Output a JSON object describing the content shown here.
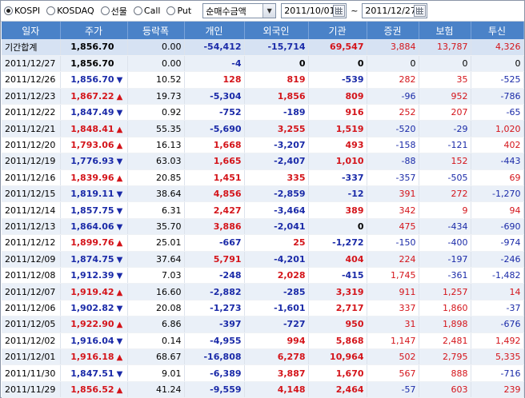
{
  "toolbar": {
    "market_options": [
      {
        "label": "KOSPI",
        "selected": true
      },
      {
        "label": "KOSDAQ",
        "selected": false
      },
      {
        "label": "선물",
        "selected": false
      },
      {
        "label": "Call",
        "selected": false
      },
      {
        "label": "Put",
        "selected": false
      }
    ],
    "metric_select": "순매수금액",
    "date_from": "2011/10/01",
    "date_separator": "~",
    "date_to": "2011/12/27"
  },
  "columns": [
    "일자",
    "주가",
    "등락폭",
    "개인",
    "외국인",
    "기관",
    "증권",
    "보험",
    "투신"
  ],
  "colors": {
    "header_bg": "#4a82c8",
    "up": "#d4141a",
    "down": "#1a2aa8"
  },
  "rows": [
    {
      "date": "기간합계",
      "price": "1,856.70",
      "dir": "",
      "change": "0.00",
      "indiv": "-54,412",
      "foreign": "-15,714",
      "inst": "69,547",
      "sec": "3,884",
      "ins": "13,787",
      "trust": "4,326",
      "total": true
    },
    {
      "date": "2011/12/27",
      "price": "1,856.70",
      "dir": "",
      "change": "0.00",
      "indiv": "-4",
      "foreign": "0",
      "inst": "0",
      "sec": "0",
      "ins": "0",
      "trust": "0"
    },
    {
      "date": "2011/12/26",
      "price": "1,856.70",
      "dir": "down",
      "change": "10.52",
      "indiv": "128",
      "foreign": "819",
      "inst": "-539",
      "sec": "282",
      "ins": "35",
      "trust": "-525"
    },
    {
      "date": "2011/12/23",
      "price": "1,867.22",
      "dir": "up",
      "change": "19.73",
      "indiv": "-5,304",
      "foreign": "1,856",
      "inst": "809",
      "sec": "-96",
      "ins": "952",
      "trust": "-786"
    },
    {
      "date": "2011/12/22",
      "price": "1,847.49",
      "dir": "down",
      "change": "0.92",
      "indiv": "-752",
      "foreign": "-189",
      "inst": "916",
      "sec": "252",
      "ins": "207",
      "trust": "-65"
    },
    {
      "date": "2011/12/21",
      "price": "1,848.41",
      "dir": "up",
      "change": "55.35",
      "indiv": "-5,690",
      "foreign": "3,255",
      "inst": "1,519",
      "sec": "-520",
      "ins": "-29",
      "trust": "1,020"
    },
    {
      "date": "2011/12/20",
      "price": "1,793.06",
      "dir": "up",
      "change": "16.13",
      "indiv": "1,668",
      "foreign": "-3,207",
      "inst": "493",
      "sec": "-158",
      "ins": "-121",
      "trust": "402"
    },
    {
      "date": "2011/12/19",
      "price": "1,776.93",
      "dir": "down",
      "change": "63.03",
      "indiv": "1,665",
      "foreign": "-2,407",
      "inst": "1,010",
      "sec": "-88",
      "ins": "152",
      "trust": "-443"
    },
    {
      "date": "2011/12/16",
      "price": "1,839.96",
      "dir": "up",
      "change": "20.85",
      "indiv": "1,451",
      "foreign": "335",
      "inst": "-337",
      "sec": "-357",
      "ins": "-505",
      "trust": "69"
    },
    {
      "date": "2011/12/15",
      "price": "1,819.11",
      "dir": "down",
      "change": "38.64",
      "indiv": "4,856",
      "foreign": "-2,859",
      "inst": "-12",
      "sec": "391",
      "ins": "272",
      "trust": "-1,270"
    },
    {
      "date": "2011/12/14",
      "price": "1,857.75",
      "dir": "down",
      "change": "6.31",
      "indiv": "2,427",
      "foreign": "-3,464",
      "inst": "389",
      "sec": "342",
      "ins": "9",
      "trust": "94"
    },
    {
      "date": "2011/12/13",
      "price": "1,864.06",
      "dir": "down",
      "change": "35.70",
      "indiv": "3,886",
      "foreign": "-2,041",
      "inst": "0",
      "sec": "475",
      "ins": "-434",
      "trust": "-690"
    },
    {
      "date": "2011/12/12",
      "price": "1,899.76",
      "dir": "up",
      "change": "25.01",
      "indiv": "-667",
      "foreign": "25",
      "inst": "-1,272",
      "sec": "-150",
      "ins": "-400",
      "trust": "-974"
    },
    {
      "date": "2011/12/09",
      "price": "1,874.75",
      "dir": "down",
      "change": "37.64",
      "indiv": "5,791",
      "foreign": "-4,201",
      "inst": "404",
      "sec": "224",
      "ins": "-197",
      "trust": "-246"
    },
    {
      "date": "2011/12/08",
      "price": "1,912.39",
      "dir": "down",
      "change": "7.03",
      "indiv": "-248",
      "foreign": "2,028",
      "inst": "-415",
      "sec": "1,745",
      "ins": "-361",
      "trust": "-1,482"
    },
    {
      "date": "2011/12/07",
      "price": "1,919.42",
      "dir": "up",
      "change": "16.60",
      "indiv": "-2,882",
      "foreign": "-285",
      "inst": "3,319",
      "sec": "911",
      "ins": "1,257",
      "trust": "14"
    },
    {
      "date": "2011/12/06",
      "price": "1,902.82",
      "dir": "down",
      "change": "20.08",
      "indiv": "-1,273",
      "foreign": "-1,601",
      "inst": "2,717",
      "sec": "337",
      "ins": "1,860",
      "trust": "-37"
    },
    {
      "date": "2011/12/05",
      "price": "1,922.90",
      "dir": "up",
      "change": "6.86",
      "indiv": "-397",
      "foreign": "-727",
      "inst": "950",
      "sec": "31",
      "ins": "1,898",
      "trust": "-676"
    },
    {
      "date": "2011/12/02",
      "price": "1,916.04",
      "dir": "down",
      "change": "0.14",
      "indiv": "-4,955",
      "foreign": "994",
      "inst": "5,868",
      "sec": "1,147",
      "ins": "2,481",
      "trust": "1,492"
    },
    {
      "date": "2011/12/01",
      "price": "1,916.18",
      "dir": "up",
      "change": "68.67",
      "indiv": "-16,808",
      "foreign": "6,278",
      "inst": "10,964",
      "sec": "502",
      "ins": "2,795",
      "trust": "5,335"
    },
    {
      "date": "2011/11/30",
      "price": "1,847.51",
      "dir": "down",
      "change": "9.01",
      "indiv": "-6,389",
      "foreign": "3,887",
      "inst": "1,670",
      "sec": "567",
      "ins": "888",
      "trust": "-716"
    },
    {
      "date": "2011/11/29",
      "price": "1,856.52",
      "dir": "up",
      "change": "41.24",
      "indiv": "-9,559",
      "foreign": "4,148",
      "inst": "2,464",
      "sec": "-57",
      "ins": "603",
      "trust": "239"
    }
  ]
}
